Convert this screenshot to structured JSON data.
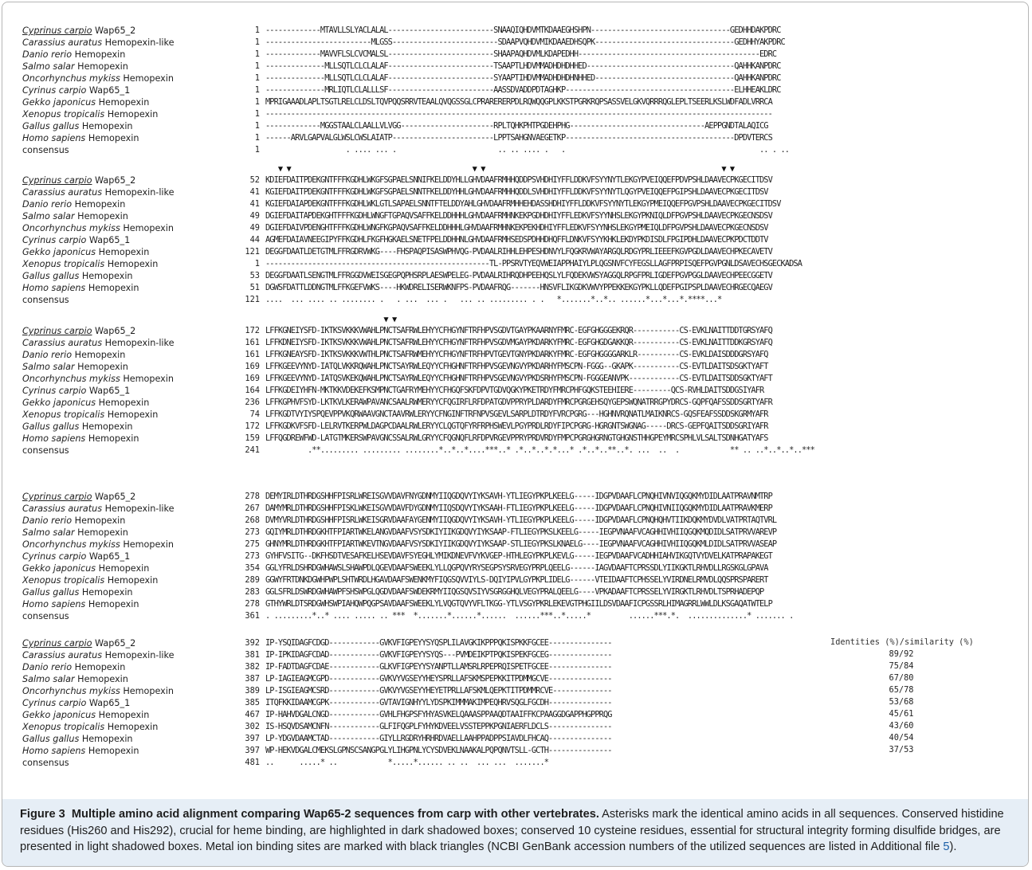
{
  "species": [
    {
      "italic": "Cyprinus carpio",
      "rest": " Wap65_2",
      "underline": true
    },
    {
      "italic": "Carassius auratus",
      "rest": " Hemopexin-like"
    },
    {
      "italic": "Danio rerio",
      "rest": " Hemopexin"
    },
    {
      "italic": "Salmo salar",
      "rest": " Hemopexin"
    },
    {
      "italic": "Oncorhynchus mykiss",
      "rest": " Hemopexin"
    },
    {
      "italic": "Cyrinus carpio",
      "rest": " Wap65_1"
    },
    {
      "italic": "Gekko japonicus",
      "rest": " Hemopexin"
    },
    {
      "italic": "Xenopus tropicalis",
      "rest": " Hemopexin"
    },
    {
      "italic": "Gallus gallus",
      "rest": " Hemopexin"
    },
    {
      "italic": "Homo sapiens",
      "rest": " Hemopexin"
    },
    {
      "italic": "",
      "rest": "consensus"
    }
  ],
  "blocks": [
    {
      "triangles": "",
      "nums": [
        "1",
        "1",
        "1",
        "1",
        "1",
        "1",
        "1",
        "1",
        "1",
        "1",
        "1"
      ],
      "seqs": [
        "-------------MTAVLLSLYACLALAL-------------------------SNAAQIQHDVMTKDAAEGHSHPN---------------------------------GEDHHDAKPDRC",
        "-------------------------MLGSS-------------------------SDAAPVQHDVMIKDAAEDHSQPK---------------------------------GEDHHYAKPDRC",
        "-------------MAVVFLSLCVCMALSL-------------------------SHAAPAQHDVMLKDAPEDHH-------------------------------------------EDRC",
        "--------------MLLSQTLCLCLALAF-------------------------TSAAPTLHDVMMADHDHDHHED-----------------------------------QAHHKANPDRC",
        "--------------MLLSQTLCLCLALAF-------------------------SYAAPTIHDVMMADHDHDHNHHED---------------------------------QAHHKANPDRC",
        "--------------MRLIQTLCLALLLSF-------------------------AASSDVADDPDTAGHKP----------------------------------------ELHHEAKLDRC",
        "MPRIGAAADLAPLTSGTLRELCLDSLTQVPQQSRRVTEAALQVQGSSGLCPRARERERPDLRQWQQGPLKKSTPGRKRQPSASSVELGKVQRRRQGLEPLTSEERLKSLWDFADLVRRCA",
        "------------------------------------------------------------------------------------------------------------------------",
        "-------------MGGSTAALCLAALLVLVGG----------------------RPLTQHKPHTPGDEHPHG--------------------------------AEPPGNDTALAQICG",
        "------ARVLGAPVALGLWSLCWSLAIATP------------------------LPPTSAHGNVAEGETKP----------------------------------------DPDVTERCS",
        "                   . .... ... .                        .. .. .... .   .                                              .. . .."
      ]
    },
    {
      "triangles": "   ▼ ▼                                           ▼ ▼                                                        ▼ ▼",
      "nums": [
        "52",
        "41",
        "41",
        "49",
        "49",
        "44",
        "121",
        "1",
        "53",
        "51",
        "121"
      ],
      "seqs": [
        "KDIEFDAITPDEKGNTFFFKGDHLWKGFSGPAELSNNIFKELDDYHLLGHVDAAFRMHHQDDPSVHDHIYFFLDDKVFSYYNYTLEKGYPVEIQQEFPDVPSHLDAAVECPKGECITDSV",
        "KGIEFDAITPDEKGNTFFFKGDHLWKGFSGPAELSNNTFKELDDYHHLGHVDAAFRMHHQDDLSVHDHIYFFLDDKVFSYYNYTLQGYPVEIQQEFPGIPSHLDAAVECPKGECITDSV",
        "KGIEFDAIAPDEKGNTFFFKGDHLWKLGTLSAPAELSNNTFTELDDYAHLGHVDAAFRMHHEHDASSHDHIYFFLDDKVFSYYNYTLEKGYPMEIQQEFPGVPSHLDAAVECPKGECITDSV",
        "DGIEFDAITAPDEKGHTFFFKGDHLWNGFTGPAQVSAFFKELDDHHHLGHVDAAFRMHNKEKPGDHDHIYFFLEDKVFSYYNHSLEKGYPKNIQLDFPGVPSHLDAAVECPKGECNSDSV",
        "DGIEFDAIVPDENGHTFFFKGDHLWNGFKGPAQVSAFFKELDDHHHLGHVDAAFRMHNKEKPEKHDHIYFFLEDKVFSYYNHSLEKGYPMEIQLDFPGVPSHLDAAVECPKGECNSDSV",
        "AGMEFDAIAVNEEGIPYFFKGDHLFKGFHGKAELSNETFPELDDHHNLGHVDAAFRMHSEDSPDHHDHQFFLDNKVFSYYKHKLEKDYPKDISDLFPGIPDHLDAAVECPKPDCTDDTV",
        "DEGGFDAATLDETGTMLFFRGDRVWKG----FHSPAQPISASWPHVQG-PVDAALRIHHLEHPESHDNVYLFQGKRVWAYARGQLRDGYPRLIEEEFKGVPGDLDAAVECHPKECAVETV",
        "-----------------------------------------------------TL-PPSRVTYEQVWEIAPPHAIYLPLQGSNVFCYFEGSLLAGFPRPISQEFPGVPGNLDSAVECHSGECKADSA",
        "DEGGFDAATLSENGTMLFFRGGDVWEISGEGPQPHSRPLAESWPELEG-PVDAALRIHRQDHPEEHQSLYLFQDEKVWSYAGGQLRPGFPRLIGDEFPGVPGGLDAAVECHPEECGGETV",
        "DGWSFDATTLDDNGTMLFFKGEFVWKS----HKWDRELISERWKNFPS-PVDAAFRQG-------HNSVFLIKGDKVWVYPPEKKEKGYPKLLQDEFPGIPSPLDAAVECHRGECQAEGV",
        "....  ... .... .. ........ .   . ...  ... .   ... .. ......... . .   *.......*..*.. ......*...*...*.****...*"
      ]
    },
    {
      "triangles": "                            ▼ ▼",
      "nums": [
        "172",
        "161",
        "161",
        "169",
        "169",
        "164",
        "236",
        "74",
        "172",
        "159",
        "241"
      ],
      "seqs": [
        "LFFKGNEIYSFD-IKTKSVKKKVWAHLPNCTSAFRWLEHYYCFHGYNFTRFHPVSGDVTGAYPKAARNYFMRC-EGFGHGGGEKRQR-----------CS-EVKLNAITTDDTGRSYAFQ",
        "LFFKDNEIYSFD-IKTKSVKKKVWAHLPNCTSAFRWLEHYYCFHGYNFTRFHPVSGDVMGAYPKDARKYFMRC-EGFGHGDGAKKQR-----------CS-EVKLNAITTDDKGRSYAFQ",
        "LFFKGNEAYSFD-IKTKSVKKKVWTHLPNCTSAFRWMEHYYCFHGYNFTRFHPVTGEVTGNYPKDARKYFMRC-EGFGHGGGGARKLR----------CS-EVKLDAISDDDGRSYAFQ",
        "LFFKGEEVYNYD-IATQLVKKRQWAHLPNCTSAYRWLEQYYCFHGHNFTRFHPVSGEVNGVYPKDARHYFMSCPN-FGGG--GKAPK-----------CS-EVTLDAITSDSGKTYAFT",
        "LFFKGEEVYNYD-IATQSVKEKQWAHLPNCTSAYRWLEQYYCFHGHNFTRFHPVSGEVNGVYPKDSRHYFMSCPN-FGGGEANVPK------------CS-EVTLDAITSDDSGKTYAFT",
        "LFFKGDEIYHFN-MKTKKVDEKEFKSMPNCTGAFRYMEHYYCFHGQFSKFDPVTGDVQGKYPKETRDYFMRCPHFGQKSTEEHIERE---------QCS-RVHLDAITSDDGSIYAFR",
        "LFFKGPHVFSYD-LKTKVLKERAWPAVANCSAALRWMERYYCFQGIRFLRFDPATGDVPPRYPLDARDYFMRCPGRGEHSQYGEPSWQNATRRGPYDRCS-GQPFQAFSSDDSGRTYAFR",
        "LFFKGDTVYIYSPQEVPPVKQRWAAVGNCTAAVRWLERYYCFNGINFTRFNPVSGEVLSARPLDTRDYFVRCPGRG---HGHNVRQNATLMAIKNRCS-GQSFEAFSSDDSKGRMYAFR",
        "LFFKGDKVFSFD-LELRVTKERPWLDAGPCDAALRWLERYYCLQGTQFYRFRPHSWEVLPGYPRDLRDYFIPCPGRG-HGRGNTSWGNAG-----DRCS-GEPFQAITSDDSGRIYAFR",
        "LFFQGDREWFWD-LATGTMKERSWPAVGNCSSALRWLGRYYCFQGNQFLRFDPVRGEVPPRYPRDVRDYFMPCPGRGHGRNGTGHGNSTHHGPEYMRCSPHLVLSALTSDNHGATYAFS",
        "          .**......... ......... ........*..*..*....***..* .*..*..*.*...* .*..*..**..*. ...  ..  .            ** .. ..*..*..*..***"
      ]
    },
    {
      "triangles": "",
      "nums": [
        "278",
        "267",
        "268",
        "273",
        "275",
        "273",
        "354",
        "289",
        "283",
        "278",
        "361"
      ],
      "seqs": [
        "DEMYIRLDTHRDGSHHFPISRLWREISGVVDAVFNYGDNMYIIQGDQVYIYKSAVH-YTLIEGYPKPLKEELG-----IDGPVDAAFLCPNQHIVNVIQGQKMYDIDLAATPRAVNMTRP",
        "DAMYMRLDTHRDGSHHFPISKLWKEISGVVDAVFDYGDNMYIIQSDQVYIYKSAAH-FTLIEGYPKPLKEELG-----IDGPVDAAFLCPNQHIVNIIQGQKMYDIDLAATPRAVKMERP",
        "DVMYVRLDTHRDGSHHFPISRLWKEISGRVDAAFAYGENMYIIQGDQVYIYKSAVH-YTLIEGYPKPLKEELG-----IDGPVDAAFLCPNQHQHVTIIKDQKMYDVDLVATPRTAQTVRL",
        "GQIYMRLDTHRDGKHTFPIARTWKELANGVDAAFVSYSDKIYIIKGDQVYIYKSAAP-FTLIEGYPKSLKEELG-----IEGPVNAAFVCAGHHIVHIIQGQKMQDIDLSATPRVVAREVP",
        "GHNYMRLDTHRDGKHTFPIARTWKEVTNGVDAAFVSYSDKIYIIKGDQVYIYKSAAP-STLIEGYPKSLKNAELG----IEGPVNAAFVCAGHHIVHIIQGQKMLDIDLSATPRVVASEAP",
        "GYHFVSITG--DKFHSDTVESAFKELHSEVDAVFSYEGHLYMIKDNEVFVYKVGEP-HTHLEGYPKPLKEVLG-----IEGPVDAAFVCADHHIAHVIKGQTVYDVELKATPRAPAKEGT",
        "GGLYFRLDSHRDGWHAWSLSHAWPDLQGEVDAAFSWEEKLYLLQGPQVYRYSEGPSYSRVEGYPRPLQEELG------IAGVDAAFTCPRSSDLYIIKGKTLRHVDLLRGSKGLGPAVA",
        "GGWYFRTDNKDGWHPWPLSHTWRDLHGAVDAAFSWENKMYFIQGSQVVIYLS-DQIYIPVLGYPKPLIDELG------VTEIDAAFTCPHSSELYVIRDNELRMVDLQQSPRSPARERT",
        "GGLSFRLDSWRDGWHAWPFSHSWPGLQGDVDAAFSWDEKRMYIIQGSQVSIYVSGRGGHQLVEGYPRALQEELG----VPKADAAFTCPRSSELYVIRGKTLRHVDLTSPRHADEPQP",
        "GTHYWRLDTSRDGWHSWPIAHQWPQGPSAVDAAFSWEEKLYLVQGTQVYVFLTKGG-YTLVSGYPKRLEKEVGTPHGIILDSVDAAFICPGSSRLHIMAGRRLWWLDLKSGAQATWTELP",
        ". .........*..* .... ..... .. ***  *.......*......*......  ......***..*.....*         ......***.*.  ..............* ....... ."
      ]
    },
    {
      "triangles": "",
      "nums": [
        "392",
        "381",
        "382",
        "387",
        "389",
        "385",
        "467",
        "302",
        "397",
        "397",
        "481"
      ],
      "seqs": [
        "IP-YSQIDAGFCDGD------------GVKVFIGPEYYSYQSPLILAVGKIKPPPQKISPKKFGCEE---------------",
        "IP-IPKIDAGFCDAD------------GVKVFIGPEYYSYQS---PVMDEIKPTPQKISPEKFGCEG---------------",
        "IP-FADTDAGFCDAE------------GLKVFIGPEYYSYANPTLLAMSRLRPEPRQISPETFGCEE---------------",
        "LP-IAGIEAGMCGPD------------GVKVYVGSEYYHEYSPRLLAFSKMSPEPKKITPDMMGCVE---------------",
        "LP-ISGIEAGMCSRD------------GVKVYVGSEYYHEYETPRLLAFSKMLQEPKTITPDMMRCVE--------------",
        "ITQFKKIDAAMCGPK------------GVTAVIGNHYYLYDSPKIMMMAKIMPEQHRVSQGLFGCDH---------------",
        "IP-HAHVDGALCNGD------------GVHLFHGPSFYHYASVKELQAAASPPAAQDTAAIFFKCPAAGGDGAPPHGPPRQG",
        "IS-HSQVDSAMCNFN------------GLFIFQGPLFYHYKDVEELVSSTEPPKPGNIAERFLDCLS---------------",
        "LP-YDGVDAAMCTAD------------GIYLLRGDRYHRHRDVAELLAAHPPADPPSIAVDLFHCAQ---------------",
        "WP-HEKVDGALCMEKSLGPNSCSANGPGLYLIHGPNLYCYSDVEKLNAAKALPQPQNVTSLL-GCTH---------------",
        "..      .....* ..            *.....*...... .. ..  ... ...  .......*"
      ]
    }
  ],
  "identity_header": "Identities (%)/similarity (%)",
  "identities": [
    "89/92",
    "75/84",
    "67/80",
    "65/78",
    "53/68",
    "45/61",
    "43/60",
    "40/54",
    "37/53"
  ],
  "caption": {
    "label": "Figure 3",
    "title": "Multiple amino acid alignment comparing Wap65-2 sequences from carp with other vertebrates.",
    "body": " Asterisks mark the identical amino acids in all sequences. Conserved histidine residues (His260 and His292), crucial for heme binding, are highlighted in dark shadowed boxes; conserved 10 cysteine residues, essential for structural integrity forming disulfide bridges, are presented in light shadowed boxes. Metal ion binding sites are marked with black triangles (NCBI GenBank accession numbers of the utilized sequences are listed in Additional file ",
    "link": "5",
    "end": ")."
  }
}
